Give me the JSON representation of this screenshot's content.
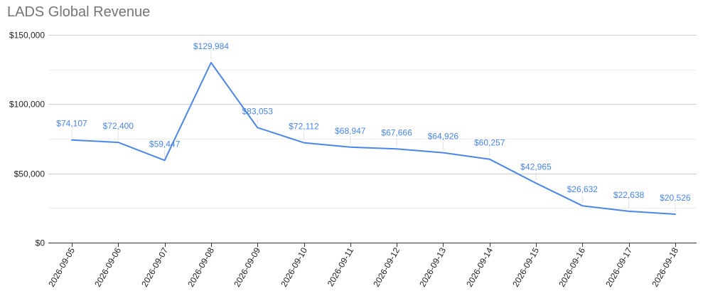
{
  "chart_data": {
    "type": "line",
    "title": "LADS Global Revenue",
    "xlabel": "",
    "ylabel": "",
    "categories": [
      "2026-09-05",
      "2026-09-06",
      "2026-09-07",
      "2026-09-08",
      "2026-09-09",
      "2026-09-10",
      "2026-09-11",
      "2026-09-12",
      "2026-09-13",
      "2026-09-14",
      "2026-09-15",
      "2026-09-16",
      "2026-09-17",
      "2026-09-18"
    ],
    "series": [
      {
        "values": [
          74107,
          72400,
          59447,
          129984,
          83053,
          72112,
          68947,
          67666,
          64926,
          60257,
          42965,
          26632,
          22638,
          20526
        ]
      }
    ],
    "data_labels": [
      "$74,107",
      "$72,400",
      "$59,447",
      "$129,984",
      "$83,053",
      "$72,112",
      "$68,947",
      "$67,666",
      "$64,926",
      "$60,257",
      "$42,965",
      "$26,632",
      "$22,638",
      "$20,526"
    ],
    "ylim": [
      0,
      150000
    ],
    "yticks": [
      0,
      50000,
      100000,
      150000
    ],
    "ytick_labels": [
      "$0",
      "$50,000",
      "$100,000",
      "$150,000"
    ],
    "grid": true,
    "minor_grid": true,
    "legend": "none",
    "line_color": "#4a86e8",
    "label_color": "#4a86e8"
  }
}
